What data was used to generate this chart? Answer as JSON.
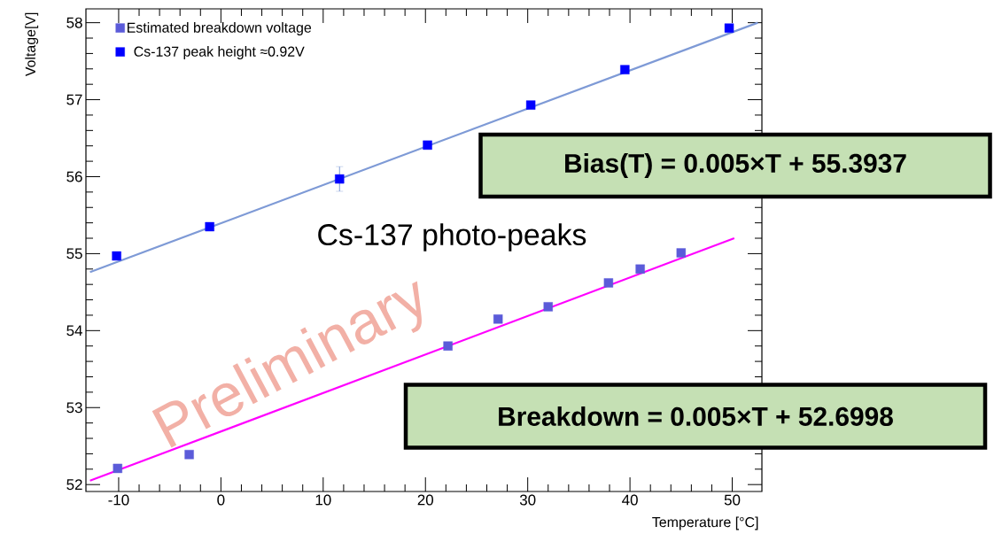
{
  "chart_data": {
    "type": "scatter",
    "xlabel": "Temperature [°C]",
    "ylabel": "Voltage[V]",
    "xlim": [
      -13.2,
      52.9
    ],
    "ylim": [
      51.91,
      58.18
    ],
    "xticks": [
      -10,
      0,
      10,
      20,
      30,
      40,
      50
    ],
    "yticks": [
      52,
      53,
      54,
      55,
      56,
      57,
      58
    ],
    "marker": "square",
    "legend": "top left",
    "series": [
      {
        "name": "Estimated breakdown voltage",
        "color": "#5b5bd9",
        "x": [
          -10.1,
          -3.1,
          22.2,
          27.1,
          32.0,
          37.9,
          41.0,
          45.0
        ],
        "values": [
          52.21,
          52.39,
          53.8,
          54.15,
          54.31,
          54.62,
          54.8,
          55.01
        ]
      },
      {
        "name": "Cs-137 peak height ≈0.92V",
        "color": "#0000ff",
        "x": [
          -10.2,
          -1.1,
          11.6,
          20.2,
          30.3,
          39.5,
          49.7
        ],
        "values": [
          54.97,
          55.35,
          55.97,
          56.41,
          56.93,
          57.39,
          57.93
        ],
        "errors": [
          null,
          null,
          0.16,
          null,
          null,
          null,
          null
        ]
      },
      {
        "type": "line",
        "marker": "none",
        "line_style": "solid",
        "color": "#ff00ff",
        "x": [
          -12.8,
          50.2
        ],
        "values": [
          52.05,
          55.2
        ]
      },
      {
        "type": "line",
        "marker": "none",
        "line_style": "solid",
        "color": "#7e9ad6",
        "x": [
          -12.8,
          52.5
        ],
        "values": [
          54.76,
          58.0
        ]
      }
    ],
    "annotations": [
      "Cs-137 photo-peaks",
      "Bias(T) = 0.005×T + 55.3937",
      "Breakdown = 0.005×T + 52.6998",
      "Preliminary"
    ]
  }
}
